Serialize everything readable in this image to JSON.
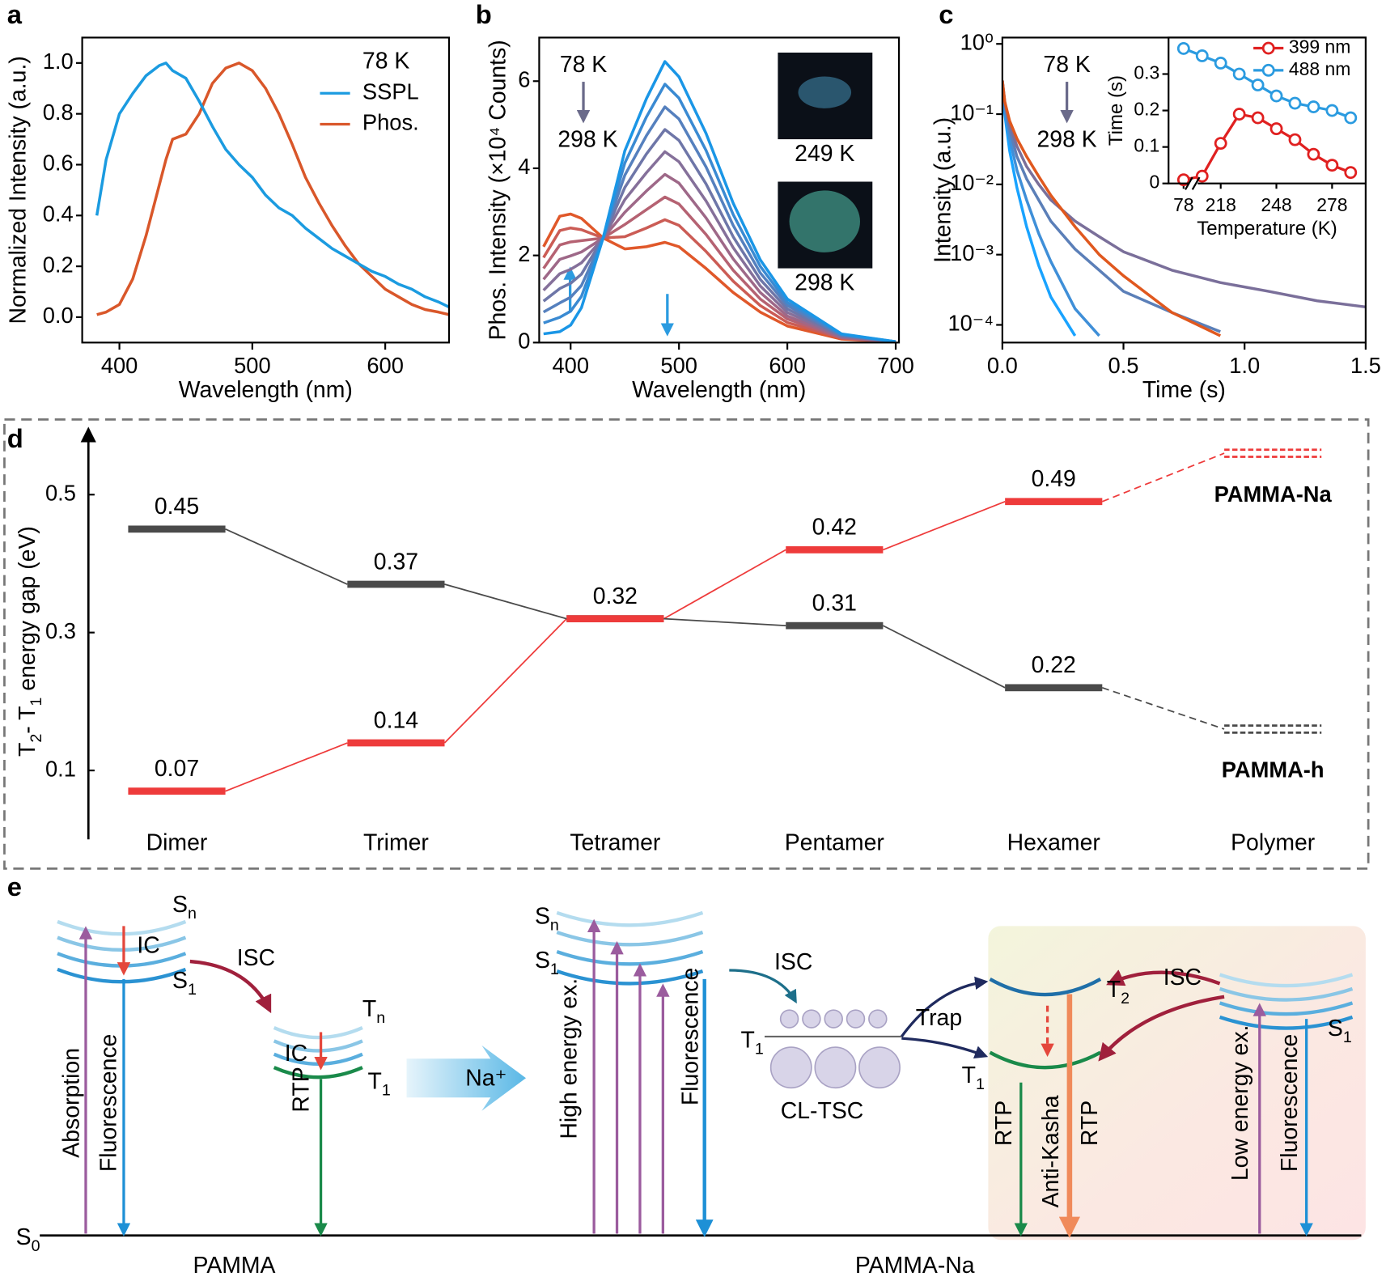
{
  "panel_labels": [
    "a",
    "b",
    "c",
    "d",
    "e"
  ],
  "chart_data": [
    {
      "type": "line",
      "xlabel": "Wavelength (nm)",
      "ylabel": "Normalized Intensity (a.u.)",
      "x": [
        383,
        390,
        400,
        410,
        420,
        430,
        435,
        440,
        450,
        460,
        470,
        480,
        490,
        500,
        510,
        520,
        530,
        540,
        550,
        560,
        570,
        580,
        590,
        600,
        610,
        620,
        630,
        640,
        648
      ],
      "series": [
        {
          "name": "SSPL",
          "color": "#1b9be0",
          "values": [
            0.4,
            0.62,
            0.8,
            0.88,
            0.95,
            0.99,
            1.0,
            0.97,
            0.94,
            0.85,
            0.75,
            0.66,
            0.6,
            0.55,
            0.48,
            0.43,
            0.4,
            0.35,
            0.31,
            0.27,
            0.24,
            0.21,
            0.18,
            0.16,
            0.13,
            0.11,
            0.08,
            0.06,
            0.04
          ]
        },
        {
          "name": "Phos.",
          "color": "#d9572a",
          "values": [
            0.01,
            0.02,
            0.05,
            0.15,
            0.32,
            0.52,
            0.62,
            0.7,
            0.72,
            0.8,
            0.92,
            0.98,
            1.0,
            0.97,
            0.9,
            0.8,
            0.68,
            0.55,
            0.45,
            0.36,
            0.28,
            0.21,
            0.16,
            0.11,
            0.08,
            0.05,
            0.03,
            0.02,
            0.01
          ]
        }
      ],
      "annotations": [
        {
          "text": "78 K",
          "color": "#000000"
        }
      ],
      "xlim": [
        372,
        648
      ],
      "xticks": [
        400,
        500,
        600
      ],
      "ylim": [
        -0.1,
        1.1
      ],
      "yticks": [
        {
          "value": 0,
          "label": "0.0"
        },
        0.2,
        0.4,
        0.6,
        0.8,
        {
          "value": 1,
          "label": "1.0"
        }
      ]
    },
    {
      "type": "line",
      "xlabel": "Wavelength (nm)",
      "ylabel": "Phos. Intensity (×10⁴ Counts)",
      "x": [
        375,
        390,
        400,
        410,
        430,
        450,
        470,
        487,
        500,
        525,
        550,
        575,
        600,
        650,
        700
      ],
      "series": [
        {
          "color": "#1a96e6",
          "values": [
            0.2,
            0.25,
            0.4,
            0.8,
            2.4,
            4.4,
            5.6,
            6.45,
            6.1,
            4.8,
            3.2,
            1.9,
            1.0,
            0.2,
            0.02
          ]
        },
        {
          "color": "#3a8ad2",
          "values": [
            0.45,
            0.58,
            0.72,
            1.06,
            2.4,
            4.12,
            5.18,
            5.93,
            5.61,
            4.41,
            2.94,
            1.75,
            0.92,
            0.19,
            0.02
          ]
        },
        {
          "color": "#5580be",
          "values": [
            0.7,
            0.91,
            1.04,
            1.31,
            2.4,
            3.84,
            4.75,
            5.41,
            5.13,
            4.03,
            2.69,
            1.6,
            0.85,
            0.17,
            0.02
          ]
        },
        {
          "color": "#6e76a8",
          "values": [
            0.95,
            1.24,
            1.36,
            1.57,
            2.4,
            3.56,
            4.33,
            4.89,
            4.64,
            3.64,
            2.43,
            1.45,
            0.77,
            0.16,
            0.02
          ]
        },
        {
          "color": "#85709a",
          "values": [
            1.2,
            1.58,
            1.68,
            1.83,
            2.4,
            3.28,
            3.9,
            4.38,
            4.15,
            3.25,
            2.18,
            1.3,
            0.69,
            0.14,
            0.02
          ]
        },
        {
          "color": "#9e6888",
          "values": [
            1.45,
            1.91,
            1.99,
            2.08,
            2.4,
            2.99,
            3.48,
            3.86,
            3.66,
            2.86,
            1.92,
            1.15,
            0.61,
            0.12,
            0.01
          ]
        },
        {
          "color": "#b56272",
          "values": [
            1.7,
            2.24,
            2.31,
            2.34,
            2.4,
            2.71,
            3.05,
            3.34,
            3.18,
            2.48,
            1.66,
            1.0,
            0.54,
            0.11,
            0.01
          ]
        },
        {
          "color": "#cb5c55",
          "values": [
            1.95,
            2.57,
            2.63,
            2.59,
            2.4,
            2.43,
            2.63,
            2.82,
            2.69,
            2.09,
            1.41,
            0.85,
            0.46,
            0.1,
            0.01
          ]
        },
        {
          "color": "#e0582a",
          "values": [
            2.2,
            2.9,
            2.95,
            2.85,
            2.4,
            2.15,
            2.2,
            2.3,
            2.2,
            1.7,
            1.15,
            0.7,
            0.38,
            0.08,
            0.01
          ]
        }
      ],
      "annotations": [
        {
          "text": "78 K",
          "color": "#1a96e6"
        },
        {
          "text": "298 K",
          "color": "#e0582a"
        }
      ],
      "insets": [
        "249 K",
        "298 K"
      ],
      "xlim": [
        371,
        703
      ],
      "xticks": [
        400,
        500,
        600,
        700
      ],
      "ylim": [
        0,
        7.0
      ],
      "yticks": [
        0,
        2,
        4,
        6
      ]
    },
    {
      "type": "line",
      "log_y": true,
      "xlabel": "Time (s)",
      "ylabel": "Intensity (a.u.)",
      "x": [
        0,
        0.01,
        0.03,
        0.06,
        0.1,
        0.15,
        0.2,
        0.3,
        0.4,
        0.5,
        0.7,
        0.9,
        1.1,
        1.3,
        1.5
      ],
      "series": [
        {
          "color": "#e0581e",
          "values": [
            0.3,
            0.15,
            0.08,
            0.045,
            0.025,
            0.013,
            0.007,
            0.0025,
            0.001,
            0.0005,
            0.00015,
            7e-05,
            null,
            null,
            null
          ]
        },
        {
          "color": "#7a6f9a",
          "values": [
            0.3,
            0.15,
            0.07,
            0.035,
            0.018,
            0.01,
            0.006,
            0.003,
            0.0018,
            0.0011,
            0.0006,
            0.0004,
            0.0003,
            0.00022,
            0.00018
          ]
        },
        {
          "color": "#5b7fb8",
          "values": [
            0.3,
            0.14,
            0.06,
            0.025,
            0.012,
            0.006,
            0.003,
            0.0012,
            0.0006,
            0.0003,
            0.00015,
            8e-05,
            null,
            null,
            null
          ]
        },
        {
          "color": "#3f8fd8",
          "values": [
            0.3,
            0.12,
            0.045,
            0.016,
            0.006,
            0.002,
            0.0008,
            0.00017,
            7e-05,
            null,
            null,
            null,
            null,
            null,
            null
          ]
        },
        {
          "color": "#19a3ff",
          "values": [
            0.3,
            0.1,
            0.03,
            0.009,
            0.0025,
            0.0007,
            0.00025,
            7e-05,
            null,
            null,
            null,
            null,
            null,
            null,
            null
          ]
        }
      ],
      "annotations": [
        {
          "text": "78 K",
          "color": "#1a96e6"
        },
        {
          "text": "298 K",
          "color": "#e0582a"
        }
      ],
      "xlim": [
        0,
        1.5
      ],
      "xticks": [
        {
          "value": 0,
          "label": "0.0"
        },
        0.5,
        {
          "value": 1,
          "label": "1.0"
        },
        1.5
      ],
      "ylim": [
        5.6e-05,
        1.23
      ],
      "yticks": [
        {
          "value": 1,
          "label": "10⁰"
        },
        {
          "value": 0.1,
          "label": "10⁻¹"
        },
        {
          "value": 0.01,
          "label": "10⁻²"
        },
        {
          "value": 0.001,
          "label": "10⁻³"
        },
        {
          "value": 0.0001,
          "label": "10⁻⁴"
        }
      ]
    },
    {
      "type": "line",
      "markers": true,
      "axis_break": true,
      "xlabel": "Temperature (K)",
      "ylabel": "Time (s)",
      "categories": [
        "78",
        null,
        "218",
        null,
        null,
        "248",
        null,
        null,
        "278",
        null
      ],
      "series": [
        {
          "name": "399 nm",
          "color": "#e02020",
          "values": [
            0.01,
            0.02,
            0.11,
            0.19,
            0.18,
            0.15,
            0.12,
            0.08,
            0.05,
            0.03
          ]
        },
        {
          "name": "488 nm",
          "color": "#2b9be0",
          "values": [
            0.37,
            0.35,
            0.33,
            0.3,
            0.27,
            0.24,
            0.22,
            0.21,
            0.2,
            0.18
          ]
        }
      ],
      "ylim": [
        0,
        0.4
      ],
      "yticks": [
        0,
        0.1,
        0.2,
        0.3
      ]
    },
    {
      "type": "level",
      "dashed_last": true,
      "ylabel": [
        {
          "text": "T"
        },
        {
          "sub": "2"
        },
        {
          "text": "- T"
        },
        {
          "sub": "1"
        },
        {
          "text": " energy gap (eV)"
        }
      ],
      "categories": [
        "Dimer",
        "Trimer",
        "Tetramer",
        "Pentamer",
        "Hexamer",
        "Polymer"
      ],
      "series": [
        {
          "name": "PAMMA-Na",
          "color": "#ee3b3b",
          "values": [
            0.07,
            0.14,
            0.32,
            0.42,
            0.49,
            0.56
          ]
        },
        {
          "name": "PAMMA-h",
          "color": "#4a4a4a",
          "values": [
            0.45,
            0.37,
            0.32,
            0.31,
            0.22,
            0.16
          ]
        }
      ],
      "ylim": [
        0,
        0.6
      ],
      "yticks": [
        0.1,
        0.3,
        0.5
      ]
    }
  ],
  "diagram": {
    "labels": [
      {
        "base": "S",
        "sub": "n"
      },
      {
        "text": "IC"
      },
      {
        "base": "S",
        "sub": "1"
      },
      {
        "text": "ISC"
      },
      {
        "base": "T",
        "sub": "n"
      },
      {
        "text": "IC"
      },
      {
        "base": "T",
        "sub": "1"
      },
      {
        "text": "Absorption"
      },
      {
        "text": "Fluorescence"
      },
      {
        "text": "RTP"
      },
      {
        "text": "Na⁺"
      },
      {
        "base": "S",
        "sub": "0"
      },
      {
        "text": "PAMMA"
      },
      {
        "base": "S",
        "sub": "n"
      },
      {
        "base": "S",
        "sub": "1"
      },
      {
        "text": "ISC"
      },
      {
        "text": "High energy ex."
      },
      {
        "text": "Fluorescence"
      },
      {
        "base": "T",
        "sub": "1"
      },
      {
        "text": "CL-TSC"
      },
      {
        "text": "Trap"
      },
      {
        "base": "T",
        "sub": "2"
      },
      {
        "text": "ISC"
      },
      {
        "base": "S",
        "sub": "1"
      },
      {
        "base": "T",
        "sub": "1"
      },
      {
        "text": "RTP"
      },
      {
        "text": "Anti-Kasha"
      },
      {
        "text": "RTP"
      },
      {
        "text": "Low energy ex."
      },
      {
        "text": "Fluorescence"
      },
      {
        "text": "PAMMA-Na"
      }
    ]
  }
}
